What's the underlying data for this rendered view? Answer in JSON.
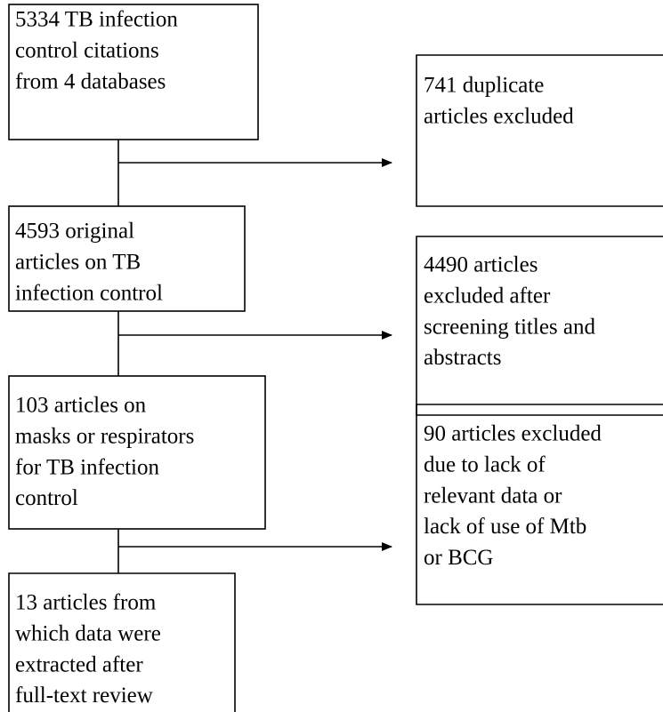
{
  "nodes": [
    {
      "lines": [
        "5334 TB infection",
        "control citations",
        "from 4 databases"
      ]
    },
    {
      "lines": [
        "4593 original",
        "articles on TB",
        "infection control"
      ]
    },
    {
      "lines": [
        "103 articles on",
        "masks or respirators",
        "for TB infection",
        "control"
      ]
    },
    {
      "lines": [
        "13 articles from",
        "which data were",
        "extracted after",
        "full-text review"
      ]
    }
  ],
  "exclusions": [
    {
      "lines": [
        "741 duplicate",
        "articles excluded"
      ]
    },
    {
      "lines": [
        "4490 articles",
        "excluded after",
        "screening titles and",
        "abstracts"
      ]
    },
    {
      "lines": [
        "90 articles excluded",
        "due to lack of",
        "relevant data or",
        "lack of use of Mtb",
        "or BCG"
      ]
    }
  ]
}
